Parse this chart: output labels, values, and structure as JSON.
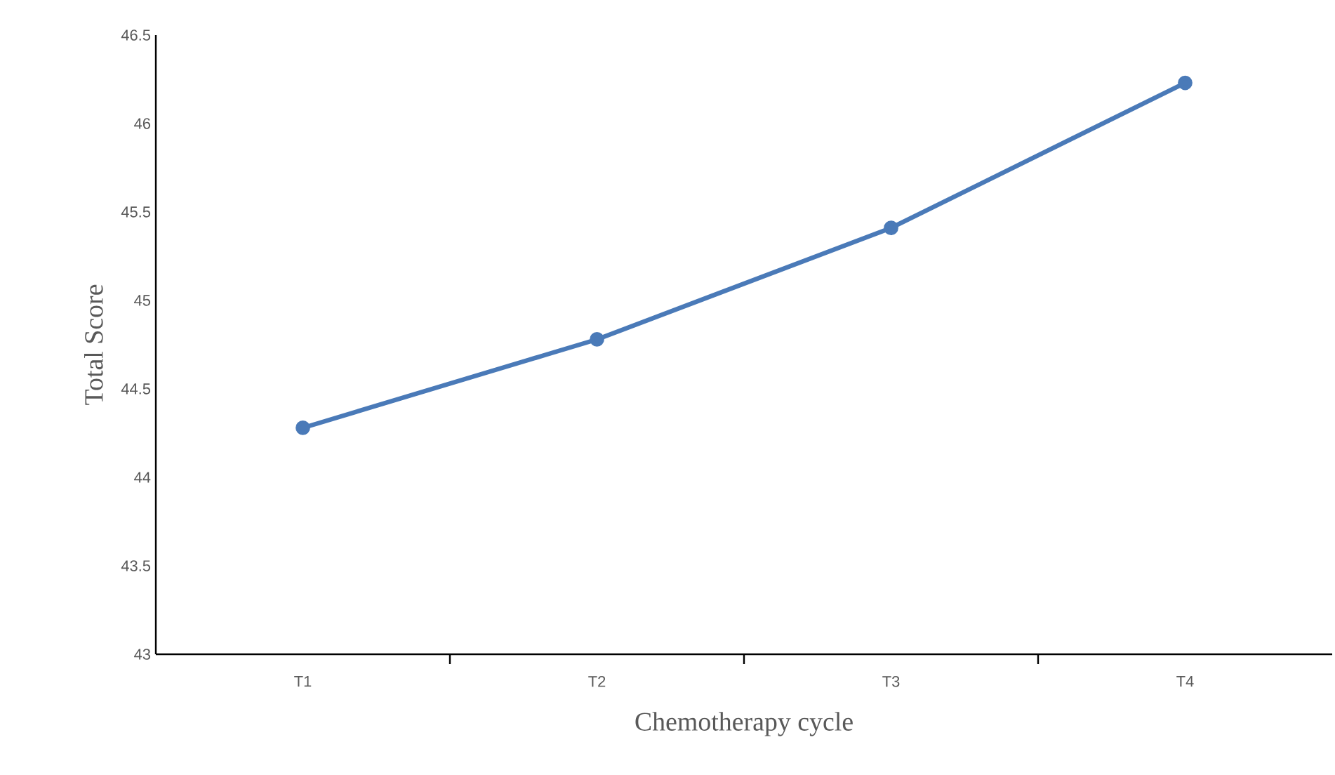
{
  "chart_data": {
    "type": "line",
    "xlabel": "Chemotherapy cycle",
    "ylabel": "Total Score",
    "categories": [
      "T1",
      "T2",
      "T3",
      "T4"
    ],
    "values": [
      44.28,
      44.78,
      45.41,
      46.23
    ],
    "color": "#4a7ab8",
    "ylim": [
      43,
      46.5
    ],
    "yticks": [
      43,
      43.5,
      44,
      44.5,
      45,
      45.5,
      46,
      46.5
    ],
    "marker": "circle",
    "line_style": "solid"
  }
}
